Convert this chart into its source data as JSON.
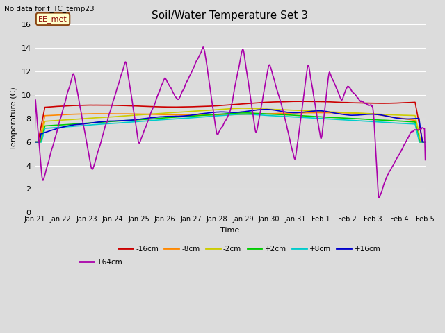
{
  "title": "Soil/Water Temperature Set 3",
  "xlabel": "Time",
  "ylabel": "Temperature (C)",
  "top_left_text": "No data for f_TC_temp23",
  "legend_label_text": "EE_met",
  "ylim": [
    0,
    16
  ],
  "x_tick_labels": [
    "Jan 21",
    "Jan 22",
    "Jan 23",
    "Jan 24",
    "Jan 25",
    "Jan 26",
    "Jan 27",
    "Jan 28",
    "Jan 29",
    "Jan 30",
    "Jan 31",
    "Feb 1",
    "Feb 2",
    "Feb 3",
    "Feb 4",
    "Feb 5"
  ],
  "bg_color": "#dcdcdc",
  "plot_bg_color": "#dcdcdc",
  "series": [
    {
      "label": "-16cm",
      "color": "#cc0000",
      "linewidth": 1.2
    },
    {
      "label": "-8cm",
      "color": "#ff8800",
      "linewidth": 1.2
    },
    {
      "label": "-2cm",
      "color": "#cccc00",
      "linewidth": 1.2
    },
    {
      "label": "+2cm",
      "color": "#00cc00",
      "linewidth": 1.2
    },
    {
      "label": "+8cm",
      "color": "#00cccc",
      "linewidth": 1.2
    },
    {
      "label": "+16cm",
      "color": "#0000cc",
      "linewidth": 1.2
    },
    {
      "label": "+64cm",
      "color": "#aa00aa",
      "linewidth": 1.2
    }
  ],
  "legend_order": [
    "-16cm",
    "-8cm",
    "-2cm",
    "+2cm",
    "+8cm",
    "+16cm",
    "+64cm"
  ],
  "ee_met_box": {
    "text": "EE_met",
    "facecolor": "#ffffcc",
    "edgecolor": "#8B4513",
    "textcolor": "#8B0000",
    "fontsize": 8
  }
}
